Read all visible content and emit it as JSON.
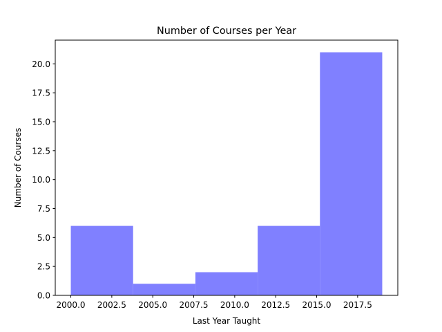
{
  "chart_data": {
    "type": "bar",
    "title": "Number of Courses per Year",
    "xlabel": "Last Year Taught",
    "ylabel": "Number of Courses",
    "bins": [
      {
        "start": 2000.0,
        "end": 2003.8,
        "value": 6
      },
      {
        "start": 2003.8,
        "end": 2007.6,
        "value": 1
      },
      {
        "start": 2007.6,
        "end": 2011.4,
        "value": 2
      },
      {
        "start": 2011.4,
        "end": 2015.2,
        "value": 6
      },
      {
        "start": 2015.2,
        "end": 2019.0,
        "value": 21
      }
    ],
    "xlim": [
      1999.05,
      2019.95
    ],
    "ylim": [
      0,
      22.05
    ],
    "x_ticks": [
      2000.0,
      2002.5,
      2005.0,
      2007.5,
      2010.0,
      2012.5,
      2015.0,
      2017.5
    ],
    "x_tick_labels": [
      "2000.0",
      "2002.5",
      "2005.0",
      "2007.5",
      "2010.0",
      "2012.5",
      "2015.0",
      "2017.5"
    ],
    "y_ticks": [
      0.0,
      2.5,
      5.0,
      7.5,
      10.0,
      12.5,
      15.0,
      17.5,
      20.0
    ],
    "y_tick_labels": [
      "0.0",
      "2.5",
      "5.0",
      "7.5",
      "10.0",
      "12.5",
      "15.0",
      "17.5",
      "20.0"
    ],
    "bar_color": "#8080ff",
    "grid": false,
    "legend": false
  }
}
